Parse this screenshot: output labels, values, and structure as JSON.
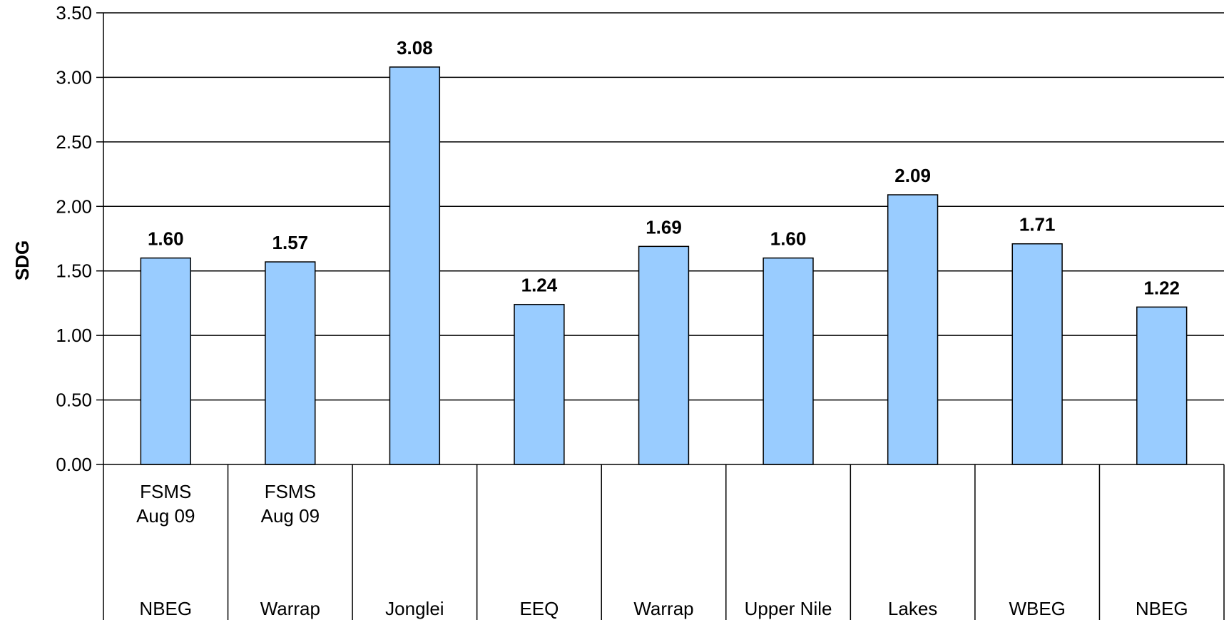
{
  "chart_data": {
    "type": "bar",
    "ylabel": "SDG",
    "ylim": [
      0,
      3.5
    ],
    "yticks": [
      "0.00",
      "0.50",
      "1.00",
      "1.50",
      "2.00",
      "2.50",
      "3.00",
      "3.50"
    ],
    "grid": true,
    "bar_color": "#99CCFF",
    "categories": [
      {
        "top": [
          "FSMS",
          "Aug 09"
        ],
        "bottom": "NBEG"
      },
      {
        "top": [
          "FSMS",
          "Aug 09"
        ],
        "bottom": "Warrap"
      },
      {
        "top": [],
        "bottom": "Jonglei"
      },
      {
        "top": [],
        "bottom": "EEQ"
      },
      {
        "top": [],
        "bottom": "Warrap"
      },
      {
        "top": [],
        "bottom": "Upper Nile"
      },
      {
        "top": [],
        "bottom": "Lakes"
      },
      {
        "top": [],
        "bottom": "WBEG"
      },
      {
        "top": [],
        "bottom": "NBEG"
      }
    ],
    "values": [
      1.6,
      1.57,
      3.08,
      1.24,
      1.69,
      1.6,
      2.09,
      1.71,
      1.22
    ],
    "value_labels": [
      "1.60",
      "1.57",
      "3.08",
      "1.24",
      "1.69",
      "1.60",
      "2.09",
      "1.71",
      "1.22"
    ]
  }
}
